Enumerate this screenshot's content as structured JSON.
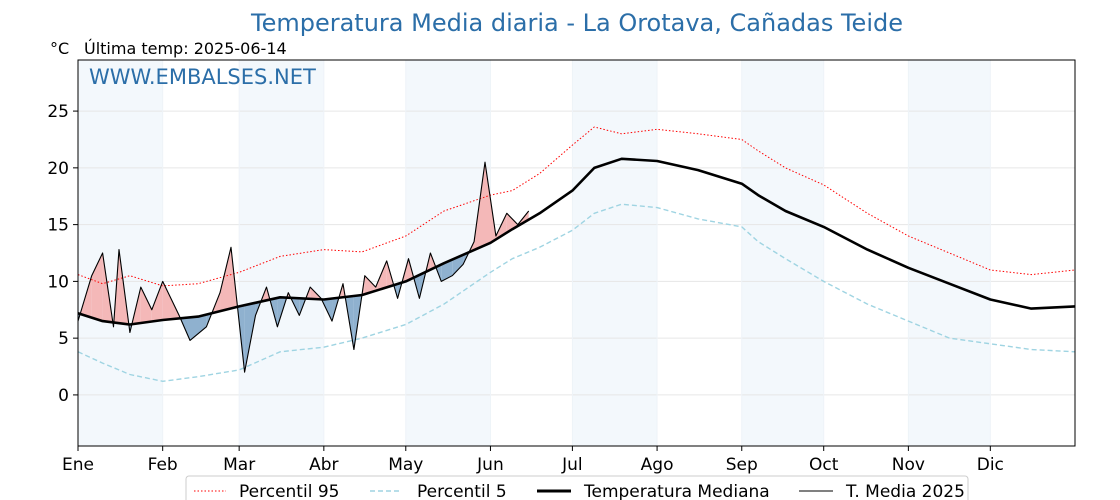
{
  "chart_data": {
    "type": "line",
    "title": "Temperatura Media diaria - La Orotava, Cañadas Teide",
    "y_unit": "°C",
    "last_update": "Última temp: 2025-06-14",
    "watermark": "WWW.EMBALSES.NET",
    "x_range_days": [
      1,
      366
    ],
    "ylim": [
      -4.5,
      29.5
    ],
    "y_ticks": [
      0,
      5,
      10,
      15,
      20,
      25
    ],
    "month_labels": [
      "Ene",
      "Feb",
      "Mar",
      "Abr",
      "May",
      "Jun",
      "Jul",
      "Ago",
      "Sep",
      "Oct",
      "Nov",
      "Dic"
    ],
    "month_start_days": [
      1,
      32,
      60,
      91,
      121,
      152,
      182,
      213,
      244,
      274,
      305,
      335
    ],
    "grid": true,
    "legend_position": "bottom-center",
    "colors": {
      "p95": "#ff0000",
      "p5": "#9fd4e2",
      "median": "#000000",
      "current": "#000000",
      "above_fill": "#f4b8b8",
      "below_fill": "#8fb1cf",
      "month_band": "#f3f8fc",
      "title": "#2b6ea8"
    },
    "series": [
      {
        "name": "Percentil 95",
        "style": "dotted-red",
        "x": [
          1,
          10,
          20,
          32,
          45,
          60,
          75,
          91,
          105,
          121,
          135,
          152,
          160,
          170,
          182,
          190,
          200,
          213,
          228,
          244,
          250,
          260,
          274,
          290,
          305,
          320,
          335,
          350,
          366
        ],
        "y": [
          10.6,
          9.8,
          10.5,
          9.6,
          9.8,
          10.8,
          12.2,
          12.8,
          12.6,
          14.0,
          16.2,
          17.6,
          18.0,
          19.5,
          22.0,
          23.6,
          23.0,
          23.4,
          23.0,
          22.5,
          21.5,
          20.0,
          18.5,
          16.0,
          14.0,
          12.5,
          11.0,
          10.6,
          11.0
        ]
      },
      {
        "name": "Percentil 5",
        "style": "dashed-lightblue",
        "x": [
          1,
          10,
          20,
          32,
          45,
          60,
          75,
          91,
          105,
          121,
          135,
          152,
          160,
          170,
          182,
          190,
          200,
          213,
          228,
          244,
          250,
          260,
          274,
          290,
          305,
          320,
          335,
          350,
          366
        ],
        "y": [
          3.8,
          2.8,
          1.8,
          1.2,
          1.6,
          2.2,
          3.8,
          4.2,
          5.0,
          6.2,
          8.0,
          10.8,
          12.0,
          13.0,
          14.5,
          16.0,
          16.8,
          16.5,
          15.5,
          14.8,
          13.5,
          12.0,
          10.0,
          8.0,
          6.5,
          5.0,
          4.5,
          4.0,
          3.8
        ]
      },
      {
        "name": "Temperatura Mediana",
        "style": "thick-black",
        "x": [
          1,
          10,
          20,
          32,
          45,
          60,
          75,
          91,
          105,
          121,
          135,
          152,
          160,
          170,
          182,
          190,
          200,
          213,
          228,
          244,
          250,
          260,
          274,
          290,
          305,
          320,
          335,
          350,
          366
        ],
        "y": [
          7.2,
          6.5,
          6.2,
          6.6,
          6.9,
          7.8,
          8.6,
          8.4,
          8.8,
          10.0,
          11.6,
          13.4,
          14.6,
          16.0,
          18.0,
          20.0,
          20.8,
          20.6,
          19.8,
          18.6,
          17.6,
          16.2,
          14.8,
          12.8,
          11.2,
          9.8,
          8.4,
          7.6,
          7.8
        ]
      },
      {
        "name": "T. Media 2025",
        "style": "thin-black",
        "x": [
          1,
          6,
          10,
          14,
          16,
          20,
          24,
          28,
          32,
          38,
          42,
          48,
          53,
          57,
          62,
          66,
          70,
          74,
          78,
          82,
          86,
          90,
          94,
          98,
          102,
          106,
          110,
          114,
          118,
          122,
          126,
          130,
          134,
          138,
          142,
          146,
          150,
          154,
          158,
          162,
          166
        ],
        "y": [
          6.5,
          10.5,
          12.5,
          6.0,
          12.8,
          5.5,
          9.5,
          7.5,
          10.0,
          7.0,
          4.8,
          6.0,
          9.0,
          13.0,
          2.0,
          7.0,
          9.5,
          6.0,
          9.0,
          7.0,
          9.5,
          8.5,
          6.5,
          9.8,
          4.0,
          10.5,
          9.5,
          11.8,
          8.5,
          12.0,
          8.5,
          12.5,
          10.0,
          10.5,
          11.5,
          13.5,
          20.5,
          14.0,
          16.0,
          15.0,
          16.2
        ]
      }
    ]
  }
}
